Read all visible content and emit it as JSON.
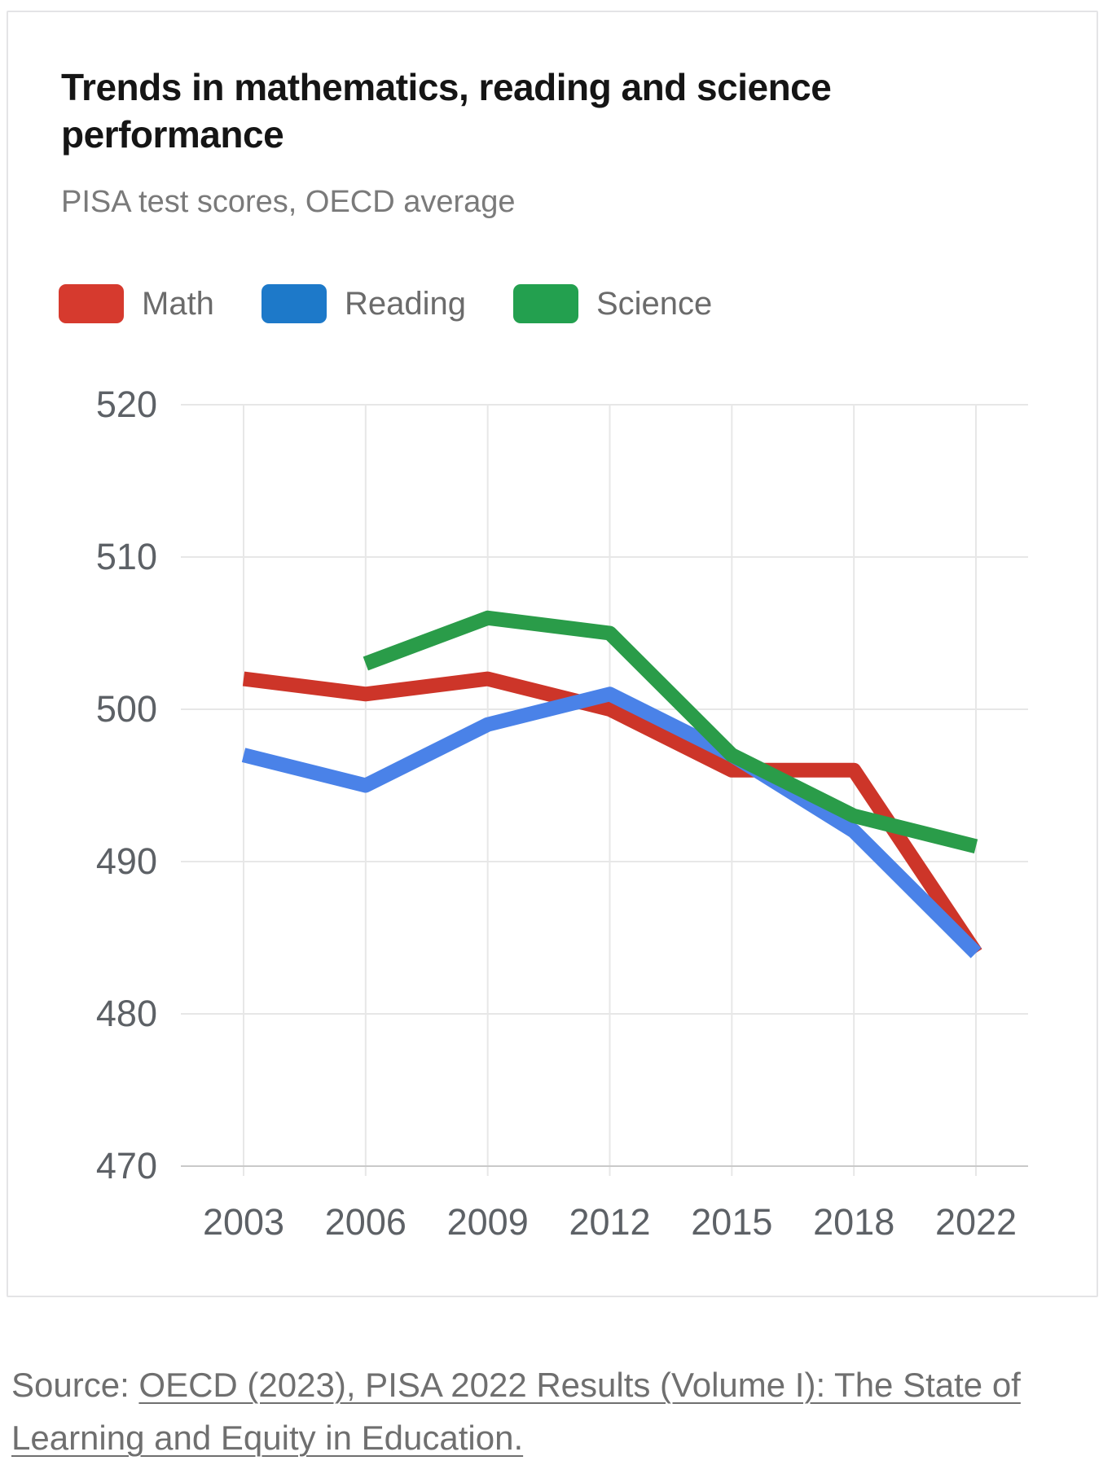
{
  "header": {
    "title": "Trends in mathematics, reading and science performance",
    "subtitle": "PISA test scores, OECD average"
  },
  "chart_data": {
    "type": "line",
    "x": [
      2003,
      2006,
      2009,
      2012,
      2015,
      2018,
      2022
    ],
    "x_labels": [
      "2003",
      "2006",
      "2009",
      "2012",
      "2015",
      "2018",
      "2022"
    ],
    "series": [
      {
        "name": "Math",
        "color": "#cd3529",
        "legend_color": "#d63a2e",
        "values": [
          502,
          501,
          502,
          500,
          496,
          496,
          484
        ]
      },
      {
        "name": "Reading",
        "color": "#4a82e8",
        "legend_color": "#1d79c9",
        "values": [
          497,
          495,
          499,
          501,
          497,
          492,
          484
        ]
      },
      {
        "name": "Science",
        "color": "#2a9c49",
        "legend_color": "#23a04f",
        "values": [
          null,
          503,
          506,
          505,
          497,
          493,
          491
        ]
      }
    ],
    "ylim": [
      470,
      520
    ],
    "y_ticks": [
      520,
      510,
      500,
      490,
      480,
      470
    ],
    "grid": true,
    "legend_position": "top-left",
    "title": "Trends in mathematics, reading and science performance",
    "subtitle": "PISA test scores, OECD average"
  },
  "source": {
    "prefix": "Source: ",
    "link_text": "OECD (2023), PISA 2022 Results (Volume I): The State of Learning and Equity in Education."
  },
  "colors": {
    "grid": "#e7e7e7",
    "axis": "#c9c9c9",
    "tick_text": "#5d6166",
    "title_text": "#151515",
    "subtitle_text": "#7a7a7a",
    "legend_text": "#6b6b6b",
    "source_text": "#6f6f6f"
  }
}
